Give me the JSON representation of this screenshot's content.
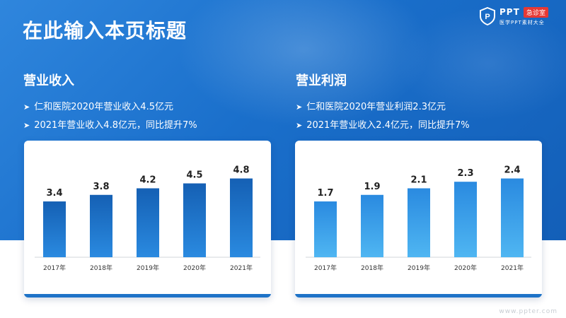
{
  "page": {
    "title": "在此输入本页标题"
  },
  "logo": {
    "brand": "PPT",
    "badge": "急诊室",
    "tagline": "医学PPT素材大全",
    "shield_letter": "P"
  },
  "left": {
    "title": "营业收入",
    "bullets": [
      "仁和医院2020年营业收入4.5亿元",
      "2021年营业收入4.8亿元，同比提升7%"
    ]
  },
  "right": {
    "title": "营业利润",
    "bullets": [
      "仁和医院2020年营业利润2.3亿元",
      "2021年营业收入2.4亿元，同比提升7%"
    ]
  },
  "watermark": "www.ppter.com",
  "colors": {
    "header_blue": "#1a6fcb",
    "bar_dark": "#1560b4",
    "bar_mid": "#2a8ae0",
    "bar_light": "#4fb6f2"
  },
  "chart_data": [
    {
      "type": "bar",
      "title": "营业收入",
      "categories": [
        "2017年",
        "2018年",
        "2019年",
        "2020年",
        "2021年"
      ],
      "values": [
        3.4,
        3.8,
        4.2,
        4.5,
        4.8
      ],
      "ylim": [
        0,
        5
      ],
      "grid": false
    },
    {
      "type": "bar",
      "title": "营业利润",
      "categories": [
        "2017年",
        "2018年",
        "2019年",
        "2020年",
        "2021年"
      ],
      "values": [
        1.7,
        1.9,
        2.1,
        2.3,
        2.4
      ],
      "ylim": [
        0,
        2.5
      ],
      "grid": false
    }
  ]
}
